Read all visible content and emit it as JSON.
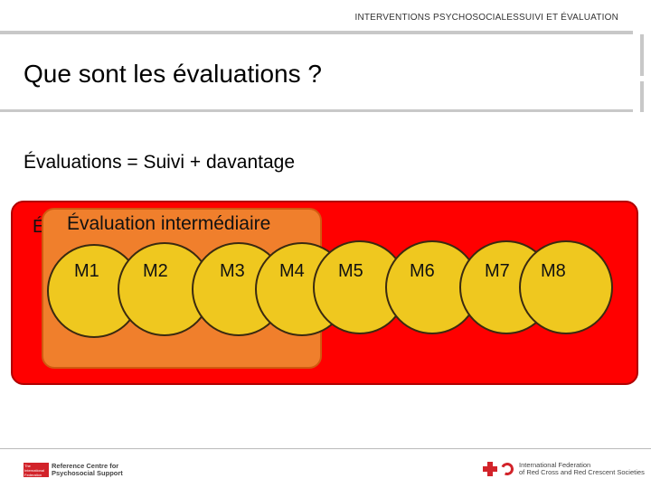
{
  "header": {
    "section": "INTERVENTIONS PSYCHOSOCIALES",
    "topic": "SUIVI ET ÉVALUATION"
  },
  "title": "Que sont les évaluations ?",
  "subtitle": "Évaluations = Suivi + davantage",
  "diagram": {
    "outer_label": "É",
    "inner_label": "Évaluation intermédiaire",
    "colors": {
      "outer": "#ff0000",
      "inner": "#f07f2c",
      "circle": "#efc81f"
    },
    "months": [
      "M1",
      "M2",
      "M3",
      "M4",
      "M5",
      "M6",
      "M7",
      "M8"
    ]
  },
  "footer": {
    "left_logo_mark": "The International Federation",
    "left_logo_line1": "Reference Centre for",
    "left_logo_line2": "Psychosocial Support",
    "right_logo_line1": "International Federation",
    "right_logo_line2": "of Red Cross and Red Crescent Societies"
  }
}
